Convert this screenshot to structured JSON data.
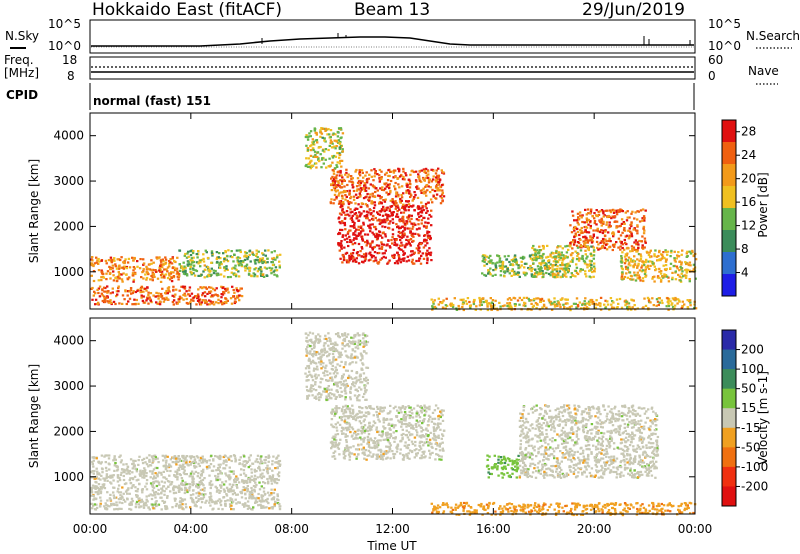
{
  "header": {
    "station": "Hokkaido East (fitACF)",
    "beam": "Beam 13",
    "date": "29/Jun/2019"
  },
  "noise_panel": {
    "left_label": "N.Sky",
    "right_label": "N.Search",
    "ticks_left": [
      "10^5",
      "10^0"
    ],
    "ticks_right": [
      "10^5",
      "10^0"
    ]
  },
  "freq_panel": {
    "left_label_1": "Freq.",
    "left_label_2": "[MHz]",
    "right_label": "Nave",
    "ticks_left": [
      "18",
      "8"
    ],
    "ticks_right": [
      "60",
      "0"
    ]
  },
  "cpid": {
    "label": "CPID",
    "value": "normal (fast) 151"
  },
  "chart_data": [
    {
      "type": "heatmap",
      "name": "power",
      "ylabel": "Slant Range [km]",
      "ylim": [
        180,
        4500
      ],
      "yticks": [
        1000,
        2000,
        3000,
        4000
      ],
      "colorbar": {
        "label": "Power [dB]",
        "ticks": [
          "4",
          "8",
          "12",
          "16",
          "20",
          "24",
          "28"
        ],
        "range": [
          0,
          30
        ],
        "colors": [
          "#1e1ee6",
          "#2e6fd0",
          "#3b8c5a",
          "#66b54a",
          "#f0c020",
          "#f39a1a",
          "#f06010",
          "#e01010"
        ]
      },
      "regions": [
        {
          "t": [
            0.0,
            3.5
          ],
          "r": [
            800,
            1350
          ],
          "db": 22
        },
        {
          "t": [
            3.5,
            7.5
          ],
          "r": [
            900,
            1500
          ],
          "db": 14
        },
        {
          "t": [
            0.0,
            6.0
          ],
          "r": [
            300,
            700
          ],
          "db": 24
        },
        {
          "t": [
            9.8,
            13.5
          ],
          "r": [
            1200,
            2500
          ],
          "db": 29
        },
        {
          "t": [
            9.5,
            14.0
          ],
          "r": [
            2500,
            3300
          ],
          "db": 24
        },
        {
          "t": [
            8.5,
            10.0
          ],
          "r": [
            3300,
            4200
          ],
          "db": 16
        },
        {
          "t": [
            15.5,
            19.0
          ],
          "r": [
            900,
            1400
          ],
          "db": 14
        },
        {
          "t": [
            19.0,
            22.0
          ],
          "r": [
            1500,
            2400
          ],
          "db": 24
        },
        {
          "t": [
            17.5,
            20.0
          ],
          "r": [
            900,
            1600
          ],
          "db": 16
        },
        {
          "t": [
            21.0,
            24.0
          ],
          "r": [
            800,
            1500
          ],
          "db": 18
        },
        {
          "t": [
            13.5,
            24.0
          ],
          "r": [
            180,
            450
          ],
          "db": 18
        }
      ]
    },
    {
      "type": "heatmap",
      "name": "velocity",
      "ylabel": "Slant Range [km]",
      "xlabel": "Time UT",
      "xticks": [
        "00:00",
        "04:00",
        "08:00",
        "12:00",
        "16:00",
        "20:00",
        "00:00"
      ],
      "xlim": [
        0,
        24
      ],
      "ylim": [
        180,
        4500
      ],
      "yticks": [
        1000,
        2000,
        3000,
        4000
      ],
      "colorbar": {
        "label": "Velocity [m s-1]",
        "ticks": [
          "200",
          "100",
          "50",
          "15",
          "-15",
          "-50",
          "-100",
          "-200"
        ],
        "range": [
          -250,
          250
        ],
        "colors": [
          "#2a2aa8",
          "#2a6a9a",
          "#3c8c5a",
          "#78c43c",
          "#c8c8b4",
          "#f0a020",
          "#f07010",
          "#f03010",
          "#e01010"
        ]
      },
      "regions": [
        {
          "t": [
            0.0,
            7.5
          ],
          "r": [
            300,
            1500
          ],
          "v": 0
        },
        {
          "t": [
            9.5,
            14.0
          ],
          "r": [
            1400,
            2600
          ],
          "v": 0
        },
        {
          "t": [
            8.5,
            11.0
          ],
          "r": [
            2700,
            4200
          ],
          "v": 0
        },
        {
          "t": [
            15.7,
            17.0
          ],
          "r": [
            1000,
            1500
          ],
          "v": 60
        },
        {
          "t": [
            17.0,
            22.5
          ],
          "r": [
            1000,
            2600
          ],
          "v": 0
        },
        {
          "t": [
            13.5,
            24.0
          ],
          "r": [
            180,
            450
          ],
          "v": -60
        }
      ]
    }
  ]
}
